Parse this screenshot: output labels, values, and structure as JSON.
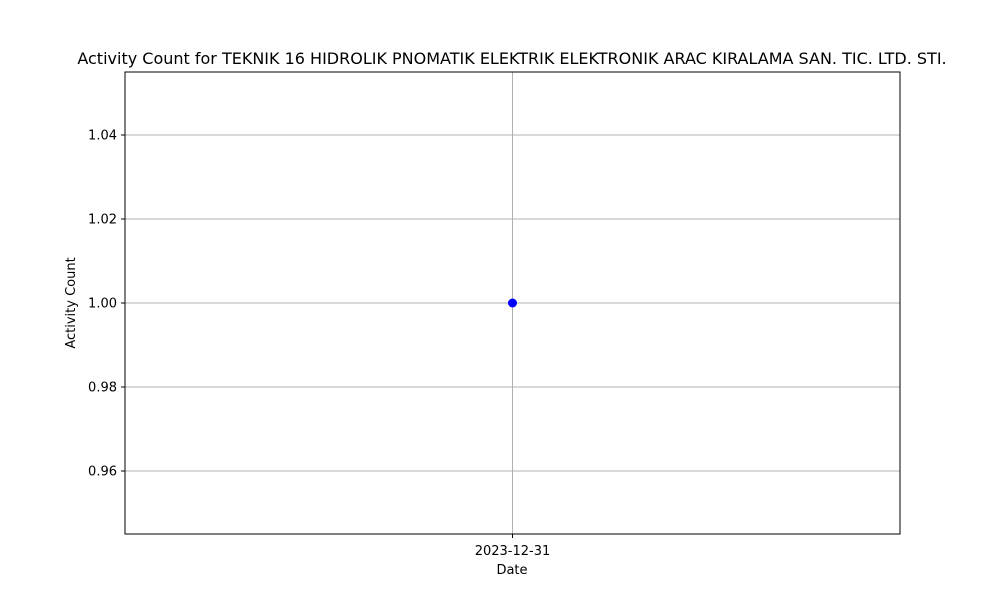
{
  "chart_data": {
    "type": "scatter",
    "title": "Activity Count for TEKNIK 16 HIDROLIK PNOMATIK ELEKTRIK ELEKTRONIK ARAC KIRALAMA SAN. TIC. LTD. STI.",
    "xlabel": "Date",
    "ylabel": "Activity Count",
    "x": [
      "2023-12-31"
    ],
    "y": [
      1
    ],
    "ylim": [
      0.945,
      1.055
    ],
    "yticks": [
      0.96,
      0.98,
      1.0,
      1.02,
      1.04
    ],
    "ytick_labels": [
      "0.96",
      "0.98",
      "1.00",
      "1.02",
      "1.04"
    ],
    "xtick_labels": [
      "2023-12-31"
    ],
    "grid": true,
    "marker_color": "#0000ff"
  }
}
